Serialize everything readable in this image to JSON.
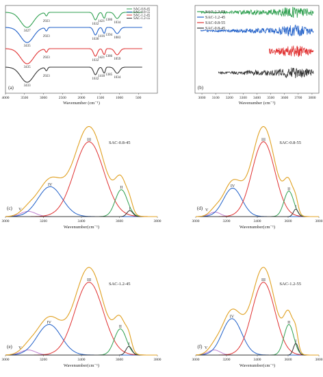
{
  "chart_data": [
    {
      "panel": "(a)",
      "type": "line",
      "xlabel": "Wavenumber (cm⁻¹)",
      "xlim": [
        4000,
        0
      ],
      "xticks": [
        4000,
        3500,
        3000,
        2500,
        2000,
        1500,
        1000,
        500
      ],
      "legend_position": "top-right",
      "legend": [
        "SAC-0.8-45",
        "SAC-0.8-55",
        "SAC-1.2-45",
        "SAC-1.2-55"
      ],
      "series": [
        {
          "color": "#2e9f4f",
          "annotations": [
            "3427",
            "2923",
            "1632",
            "1421",
            "1386",
            "1034"
          ]
        },
        {
          "color": "#1f5fc8",
          "annotations": [
            "3435",
            "2923",
            "1630",
            "1416",
            "1394",
            "1083"
          ]
        },
        {
          "color": "#e03030",
          "annotations": [
            "3435",
            "2923",
            "1632",
            "1421",
            "1386",
            "1059"
          ]
        },
        {
          "color": "#333333",
          "annotations": [
            "3433",
            "2923",
            "1632",
            "1418",
            "1385",
            "1034"
          ]
        }
      ]
    },
    {
      "panel": "(b)",
      "type": "line",
      "xlabel": "Wavenumber (cm⁻¹)",
      "xlim": [
        2950,
        3850
      ],
      "xticks": [
        3000,
        3100,
        3200,
        3300,
        3400,
        3500,
        3600,
        3700,
        3800
      ],
      "legend_position": "top-left",
      "legend": [
        "SAC-1.2-55",
        "SAC-1.2-45",
        "SAC-0.8-55",
        "SAC-0.8-45"
      ],
      "colors": [
        "#2e9f4f",
        "#1f5fc8",
        "#e03030",
        "#333333"
      ]
    },
    {
      "panel": "(c)",
      "type": "area",
      "title": "SAC-0.8-45",
      "xlabel": "Wavenumber(cm⁻¹)",
      "xlim": [
        3000,
        3800
      ],
      "xticks": [
        3000,
        3200,
        3400,
        3600,
        3800
      ],
      "peaks": [
        {
          "label": "V",
          "center": 3120,
          "height": 0.07,
          "width": 55,
          "color": "#c080d0"
        },
        {
          "label": "IV",
          "center": 3235,
          "height": 0.4,
          "width": 90,
          "color": "#1f5fc8"
        },
        {
          "label": "III",
          "center": 3440,
          "height": 1.0,
          "width": 110,
          "color": "#e03030"
        },
        {
          "label": "II",
          "center": 3610,
          "height": 0.36,
          "width": 45,
          "color": "#2e9f4f"
        },
        {
          "label": "I",
          "center": 3655,
          "height": 0.08,
          "width": 22,
          "color": "#333333"
        }
      ]
    },
    {
      "panel": "(d)",
      "type": "area",
      "title": "SAC-0.8-55",
      "xlabel": "Wavenumber(cm⁻¹)",
      "xlim": [
        3000,
        3800
      ],
      "xticks": [
        3000,
        3200,
        3400,
        3600,
        3800
      ],
      "peaks": [
        {
          "label": "V",
          "center": 3125,
          "height": 0.06,
          "width": 50,
          "color": "#c080d0"
        },
        {
          "label": "IV",
          "center": 3240,
          "height": 0.38,
          "width": 85,
          "color": "#1f5fc8"
        },
        {
          "label": "III",
          "center": 3440,
          "height": 1.0,
          "width": 105,
          "color": "#e03030"
        },
        {
          "label": "II",
          "center": 3605,
          "height": 0.34,
          "width": 45,
          "color": "#2e9f4f"
        },
        {
          "label": "I",
          "center": 3650,
          "height": 0.1,
          "width": 22,
          "color": "#333333"
        }
      ]
    },
    {
      "panel": "(e)",
      "type": "area",
      "title": "SAC-1.2-45",
      "xlabel": "Wavenumber(cm⁻¹)",
      "xlim": [
        3000,
        3800
      ],
      "xticks": [
        3000,
        3200,
        3400,
        3600,
        3800
      ],
      "peaks": [
        {
          "label": "V",
          "center": 3120,
          "height": 0.07,
          "width": 55,
          "color": "#c080d0"
        },
        {
          "label": "IV",
          "center": 3230,
          "height": 0.42,
          "width": 90,
          "color": "#1f5fc8"
        },
        {
          "label": "III",
          "center": 3440,
          "height": 1.0,
          "width": 105,
          "color": "#e03030"
        },
        {
          "label": "II",
          "center": 3605,
          "height": 0.36,
          "width": 45,
          "color": "#2e9f4f"
        },
        {
          "label": "I",
          "center": 3650,
          "height": 0.12,
          "width": 22,
          "color": "#333333"
        }
      ]
    },
    {
      "panel": "(f)",
      "type": "area",
      "title": "SAC-1.2-55",
      "xlabel": "Wavenumber(cm⁻¹)",
      "xlim": [
        3000,
        3800
      ],
      "xticks": [
        3000,
        3200,
        3400,
        3600,
        3800
      ],
      "peaks": [
        {
          "label": "V",
          "center": 3120,
          "height": 0.07,
          "width": 55,
          "color": "#c080d0"
        },
        {
          "label": "IV",
          "center": 3235,
          "height": 0.5,
          "width": 90,
          "color": "#1f5fc8"
        },
        {
          "label": "III",
          "center": 3440,
          "height": 1.0,
          "width": 105,
          "color": "#e03030"
        },
        {
          "label": "II",
          "center": 3605,
          "height": 0.42,
          "width": 45,
          "color": "#2e9f4f"
        },
        {
          "label": "I",
          "center": 3650,
          "height": 0.16,
          "width": 22,
          "color": "#333333"
        }
      ]
    }
  ],
  "envelope_color": "#e0a020"
}
